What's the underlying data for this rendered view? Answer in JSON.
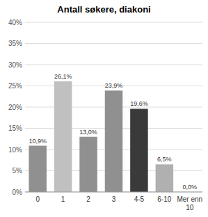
{
  "chart_data": {
    "type": "bar",
    "title": "Antall søkere, diakoni",
    "categories": [
      "0",
      "1",
      "2",
      "3",
      "4-5",
      "6-10",
      "Mer enn\n10"
    ],
    "values": [
      10.9,
      26.1,
      13.0,
      23.9,
      19.6,
      6.5,
      0.0
    ],
    "value_labels": [
      "10,9%",
      "26,1%",
      "13,0%",
      "23,9%",
      "19,6%",
      "6,5%",
      "0,0%"
    ],
    "colors": [
      "#909090",
      "#c0c0c0",
      "#909090",
      "#909090",
      "#3a3a3a",
      "#b0b0b0",
      "#d0d0d0"
    ],
    "ylim": [
      0,
      40
    ],
    "yticks": [
      {
        "value": 0,
        "label": "0%"
      },
      {
        "value": 5,
        "label": "5%"
      },
      {
        "value": 10,
        "label": "10%"
      },
      {
        "value": 15,
        "label": "15%"
      },
      {
        "value": 20,
        "label": "20%"
      },
      {
        "value": 25,
        "label": "25%"
      },
      {
        "value": 30,
        "label": "30%"
      },
      {
        "value": 35,
        "label": "35%"
      },
      {
        "value": 40,
        "label": "40%"
      }
    ],
    "grid": true
  }
}
